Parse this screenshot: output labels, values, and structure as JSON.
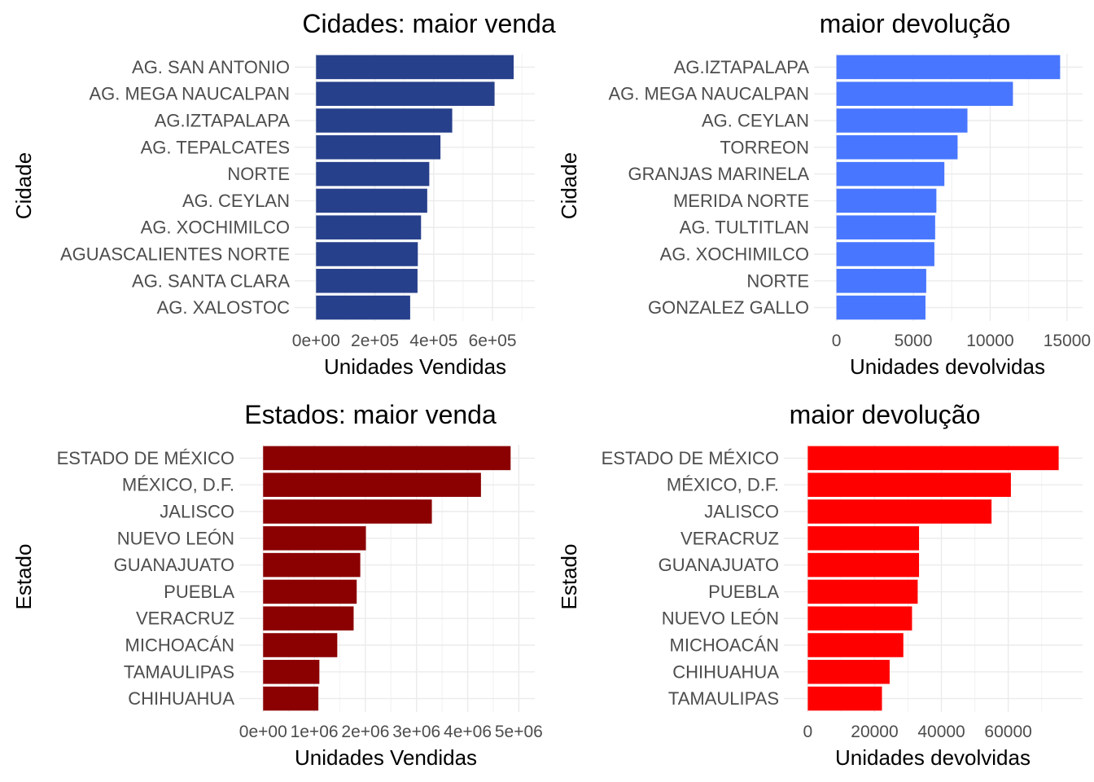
{
  "chart_data": [
    {
      "type": "bar",
      "orientation": "horizontal",
      "title": "Cidades: maior venda",
      "xlabel": "Unidades Vendidas",
      "ylabel": "Cidade",
      "categories": [
        "AG. SAN ANTONIO",
        "AG. MEGA NAUCALPAN",
        "AG.IZTAPALAPA ",
        "AG. TEPALCATES ",
        "NORTE",
        "AG. CEYLAN",
        "AG. XOCHIMILCO ",
        "AGUASCALIENTES NORTE",
        "AG. SANTA CLARA",
        "AG. XALOSTOC"
      ],
      "values": [
        672000,
        607000,
        463000,
        423000,
        385000,
        378000,
        357000,
        346000,
        345000,
        320000
      ],
      "xlim": [
        -34000,
        705000
      ],
      "ticks": [
        0,
        200000,
        400000,
        600000
      ],
      "tick_labels": [
        "0e+00",
        "2e+05",
        "4e+05",
        "6e+05"
      ],
      "color": "#27408b",
      "grid": true,
      "legend": "none"
    },
    {
      "type": "bar",
      "orientation": "horizontal",
      "title": "maior devolução",
      "xlabel": "Unidades devolvidas",
      "ylabel": "Cidade",
      "categories": [
        "AG.IZTAPALAPA ",
        "AG. MEGA NAUCALPAN",
        "AG. CEYLAN",
        "TORREON",
        "GRANJAS MARINELA",
        "MERIDA NORTE",
        "AG. TULTITLAN",
        "AG. XOCHIMILCO ",
        "NORTE",
        "GONZALEZ GALLO"
      ],
      "values": [
        14550,
        11480,
        8520,
        7880,
        7020,
        6500,
        6420,
        6370,
        5840,
        5790
      ],
      "xlim": [
        -720,
        15270
      ],
      "ticks": [
        0,
        5000,
        10000,
        15000
      ],
      "tick_labels": [
        "0",
        "5000",
        "10000",
        "15000"
      ],
      "color": "#4876ff",
      "grid": true,
      "legend": "none"
    },
    {
      "type": "bar",
      "orientation": "horizontal",
      "title": "Estados: maior venda",
      "xlabel": "Unidades Vendidas",
      "ylabel": "Estado",
      "categories": [
        "ESTADO DE MÉXICO",
        "MÉXICO, D.F.",
        "JALISCO",
        "NUEVO LEÓN",
        "GUANAJUATO",
        "PUEBLA",
        "VERACRUZ",
        "MICHOACÁN",
        "TAMAULIPAS",
        "CHIHUAHUA"
      ],
      "values": [
        4840000,
        4260000,
        3300000,
        2010000,
        1900000,
        1830000,
        1770000,
        1450000,
        1100000,
        1080000
      ],
      "xlim": [
        -243000,
        5090000
      ],
      "ticks": [
        0,
        1000000,
        2000000,
        3000000,
        4000000,
        5000000
      ],
      "tick_labels": [
        "0e+00",
        "1e+06",
        "2e+06",
        "3e+06",
        "4e+06",
        "5e+06"
      ],
      "color": "#8b0000",
      "grid": true,
      "legend": "none"
    },
    {
      "type": "bar",
      "orientation": "horizontal",
      "title": "maior devolução",
      "xlabel": "Unidades devolvidas",
      "ylabel": "Estado",
      "categories": [
        "ESTADO DE MÉXICO",
        "MÉXICO, D.F.",
        "JALISCO",
        "VERACRUZ",
        "GUANAJUATO",
        "PUEBLA",
        "NUEVO LEÓN",
        "MICHOACÁN",
        "CHIHUAHUA",
        "TAMAULIPAS"
      ],
      "values": [
        75100,
        60800,
        55000,
        33300,
        33300,
        32900,
        31200,
        28600,
        24500,
        22200
      ],
      "xlim": [
        -3750,
        78850
      ],
      "ticks": [
        0,
        20000,
        40000,
        60000
      ],
      "tick_labels": [
        "0",
        "20000",
        "40000",
        "60000"
      ],
      "color": "#ff0000",
      "grid": true,
      "legend": "none"
    }
  ]
}
